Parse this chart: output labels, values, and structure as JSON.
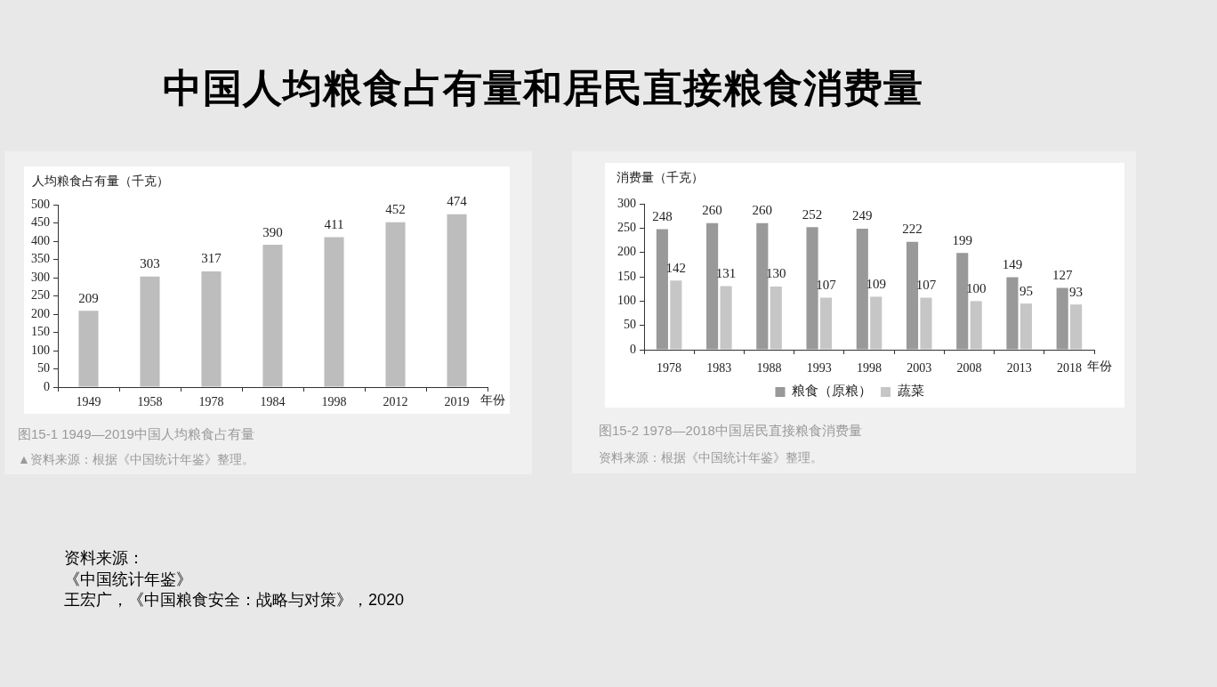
{
  "chart_data": [
    {
      "type": "bar",
      "title": "中国人均粮食占有量和居民直接粮食消费量",
      "ylabel": "人均粮食占有量（千克）",
      "xlabel": "年份",
      "categories": [
        "1949",
        "1958",
        "1978",
        "1984",
        "1998",
        "2012",
        "2019"
      ],
      "values": [
        209,
        303,
        317,
        390,
        411,
        452,
        474
      ],
      "color": "#bdbdbd",
      "ylim": [
        0,
        500
      ],
      "yticks": [
        0,
        50,
        100,
        150,
        200,
        250,
        300,
        350,
        400,
        450,
        500
      ],
      "grid": false,
      "data_labels": true,
      "annotations": [
        "图15-1 1949—2019中国人均粮食占有量",
        "▲资料来源：根据《中国统计年鉴》整理。",
        "资料来源：",
        "《中国统计年鉴》",
        "王宏广，《中国粮食安全：战略与对策》，2020"
      ]
    },
    {
      "type": "bar",
      "ylabel": "消费量（千克）",
      "xlabel": "年份",
      "categories": [
        "1978",
        "1983",
        "1988",
        "1993",
        "1998",
        "2003",
        "2008",
        "2013",
        "2018"
      ],
      "series": [
        {
          "name": "粮食（原粮）",
          "color": "#999999",
          "values": [
            248,
            260,
            260,
            252,
            249,
            222,
            199,
            149,
            127
          ]
        },
        {
          "name": "蔬菜",
          "color": "#c6c6c6",
          "values": [
            142,
            131,
            130,
            107,
            109,
            107,
            100,
            95,
            93
          ]
        }
      ],
      "ylim": [
        0,
        300
      ],
      "yticks": [
        0,
        50,
        100,
        150,
        200,
        250,
        300
      ],
      "grid": false,
      "legend": "bottom",
      "data_labels": true,
      "annotations": [
        "图15-2 1978—2018中国居民直接粮食消费量",
        "资料来源：根据《中国统计年鉴》整理。"
      ]
    }
  ]
}
